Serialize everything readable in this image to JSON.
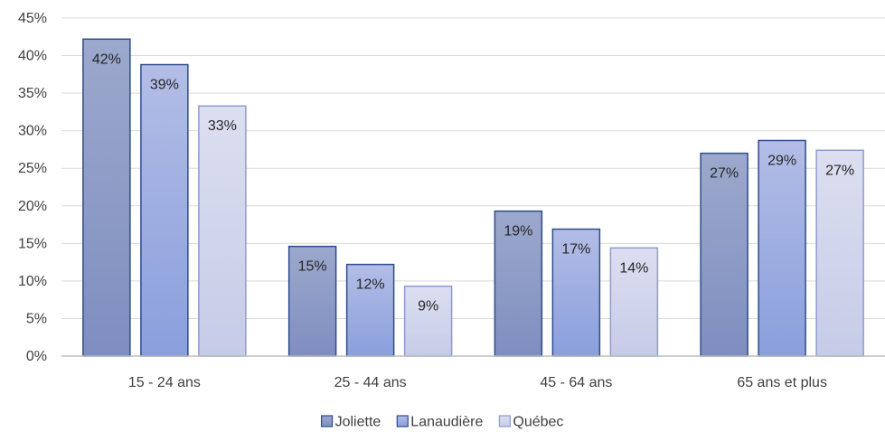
{
  "chart_data": {
    "type": "bar",
    "categories": [
      "15 - 24 ans",
      "25 - 44 ans",
      "45 - 64 ans",
      "65 ans et plus"
    ],
    "series": [
      {
        "name": "Joliette",
        "values": [
          42.2,
          14.6,
          19.3,
          27.0
        ],
        "labels": [
          "42%",
          "15%",
          "19%",
          "27%"
        ],
        "color_top": "#9ca8cc",
        "color_bottom": "#7f8ec0",
        "stroke": "#2f4c8c"
      },
      {
        "name": "Lanaudière",
        "values": [
          38.8,
          12.2,
          16.9,
          28.7
        ],
        "labels": [
          "39%",
          "12%",
          "17%",
          "29%"
        ],
        "color_top": "#b3bde6",
        "color_bottom": "#8a9fdd",
        "stroke": "#2f4c8c"
      },
      {
        "name": "Québec",
        "values": [
          33.3,
          9.3,
          14.4,
          27.4
        ],
        "labels": [
          "33%",
          "9%",
          "14%",
          "27%"
        ],
        "color_top": "#dcdff0",
        "color_bottom": "#c6cbe8",
        "stroke": "#8f9bcc"
      }
    ],
    "y_ticks": [
      "0%",
      "5%",
      "10%",
      "15%",
      "20%",
      "25%",
      "30%",
      "35%",
      "40%",
      "45%"
    ],
    "ylim": [
      0,
      45
    ],
    "grid": true,
    "legend_position": "bottom-center",
    "gridline_color": "#d9d9d9",
    "axis_color": "#bfbfbf"
  }
}
